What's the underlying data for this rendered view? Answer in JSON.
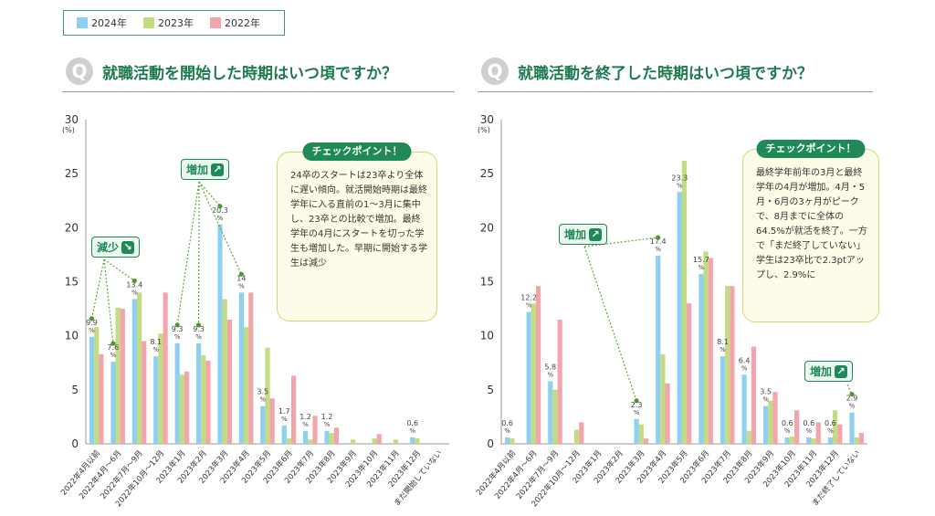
{
  "legend": {
    "items": [
      {
        "label": "2024年",
        "color": "#8dd0ef"
      },
      {
        "label": "2023年",
        "color": "#c3db82"
      },
      {
        "label": "2022年",
        "color": "#f2a5aa"
      }
    ]
  },
  "colors": {
    "accent": "#1f8a58",
    "series": [
      "#8dd0ef",
      "#c3db82",
      "#f2a5aa"
    ]
  },
  "charts": [
    {
      "question_mark": "Q",
      "question": "就職活動を開始した時期はいつ頃ですか？",
      "unit": "(%)",
      "checkpoint_title": "チェックポイント！",
      "checkpoint_text": "24卒のスタートは23卒より全体に遅い傾向。就活開始時期は最終学年に入る直前の1～3月に集中し、23卒との比較で増加。最終学年の4月にスタートを切った学生も増加した。早期に開始する学生は減少",
      "badges": [
        {
          "label": "減少",
          "icon": "arrow-down-icon",
          "glyph": "↘"
        },
        {
          "label": "増加",
          "icon": "arrow-up-icon",
          "glyph": "↗"
        }
      ]
    },
    {
      "question_mark": "Q",
      "question": "就職活動を終了した時期はいつ頃ですか？",
      "unit": "(%)",
      "checkpoint_title": "チェックポイント！",
      "checkpoint_text": "最終学年前年の3月と最終学年の4月が増加。4月・5月・6月の3ヶ月がピークで、8月までに全体の64.5%が就活を終了。一方で「まだ終了していない」学生は23卒比で2.3ptアップし、2.9%に",
      "badges": [
        {
          "label": "増加",
          "icon": "arrow-up-icon",
          "glyph": "↗"
        },
        {
          "label": "増加",
          "icon": "arrow-up-icon",
          "glyph": "↗"
        }
      ]
    }
  ],
  "chart_data": [
    {
      "type": "bar",
      "title": "就職活動を開始した時期はいつ頃ですか？",
      "ylabel": "(%)",
      "ylim": [
        0,
        30
      ],
      "yticks": [
        0,
        5,
        10,
        15,
        20,
        25,
        30
      ],
      "categories": [
        "2022年4月以前",
        "2022年4月～6月",
        "2022年7月～9月",
        "2022年10月～12月",
        "2023年1月",
        "2023年2月",
        "2023年3月",
        "2023年4月",
        "2023年5月",
        "2023年6月",
        "2023年7月",
        "2023年8月",
        "2023年9月",
        "2023年10月",
        "2023年11月",
        "2023年12月",
        "まだ開始していない"
      ],
      "series": [
        {
          "name": "2024年",
          "values": [
            9.9,
            7.6,
            13.4,
            8.1,
            9.3,
            9.3,
            20.3,
            14.0,
            3.5,
            1.7,
            1.2,
            1.2,
            0,
            0,
            0,
            0.6,
            0
          ]
        },
        {
          "name": "2023年",
          "values": [
            10.8,
            12.6,
            14.0,
            10.2,
            6.4,
            8.2,
            13.4,
            10.8,
            8.9,
            0.5,
            0.4,
            1.0,
            0.4,
            0.5,
            0.4,
            0.5,
            0
          ]
        },
        {
          "name": "2022年",
          "values": [
            8.3,
            12.5,
            9.5,
            14.0,
            6.7,
            7.7,
            11.5,
            14.0,
            4.2,
            6.3,
            2.6,
            1.5,
            0,
            0.9,
            0,
            0,
            0
          ]
        }
      ],
      "data_labels": [
        "9.9",
        "7.6",
        "13.4",
        "8.1",
        "9.3",
        "9.3",
        "20.3",
        "14",
        "3.5",
        "1.7",
        "1.2",
        "1.2",
        "",
        "",
        "",
        "0.6",
        ""
      ],
      "annotations": [
        {
          "text": "減少",
          "points": [
            0,
            1,
            2
          ]
        },
        {
          "text": "増加",
          "points": [
            4,
            5,
            6,
            7
          ]
        }
      ]
    },
    {
      "type": "bar",
      "title": "就職活動を終了した時期はいつ頃ですか？",
      "ylabel": "(%)",
      "ylim": [
        0,
        30
      ],
      "yticks": [
        0,
        5,
        10,
        15,
        20,
        25,
        30
      ],
      "categories": [
        "2022年4月以前",
        "2022年4月～6月",
        "2022年7月～9月",
        "2022年10月～12月",
        "2023年1月",
        "2023年2月",
        "2023年3月",
        "2023年4月",
        "2023年5月",
        "2023年6月",
        "2023年7月",
        "2023年8月",
        "2023年9月",
        "2023年10月",
        "2023年11月",
        "2023年12月",
        "まだ終了していない"
      ],
      "series": [
        {
          "name": "2024年",
          "values": [
            0.6,
            12.2,
            5.8,
            0,
            0,
            0,
            2.3,
            17.4,
            23.3,
            15.7,
            8.1,
            6.4,
            3.5,
            0.6,
            0.6,
            0.6,
            2.9
          ]
        },
        {
          "name": "2023年",
          "values": [
            0.5,
            13.0,
            5.0,
            1.3,
            0,
            0,
            1.8,
            8.3,
            26.2,
            17.8,
            14.6,
            1.2,
            4.0,
            0.7,
            0.5,
            3.1,
            0.6
          ]
        },
        {
          "name": "2022年",
          "values": [
            0,
            14.6,
            11.5,
            2.0,
            0,
            0,
            0.5,
            5.6,
            13.0,
            17.2,
            14.6,
            9.0,
            4.8,
            3.1,
            2.0,
            1.8,
            1.0
          ]
        }
      ],
      "data_labels": [
        "0.6",
        "12.2",
        "5.8",
        "",
        "",
        "",
        "2.3",
        "17.4",
        "23.3",
        "15.7",
        "8.1",
        "6.4",
        "3.5",
        "0.6",
        "0.6",
        "0.6",
        "2.9"
      ],
      "annotations": [
        {
          "text": "増加",
          "points": [
            6,
            7
          ]
        },
        {
          "text": "増加",
          "points": [
            16
          ]
        }
      ]
    }
  ]
}
